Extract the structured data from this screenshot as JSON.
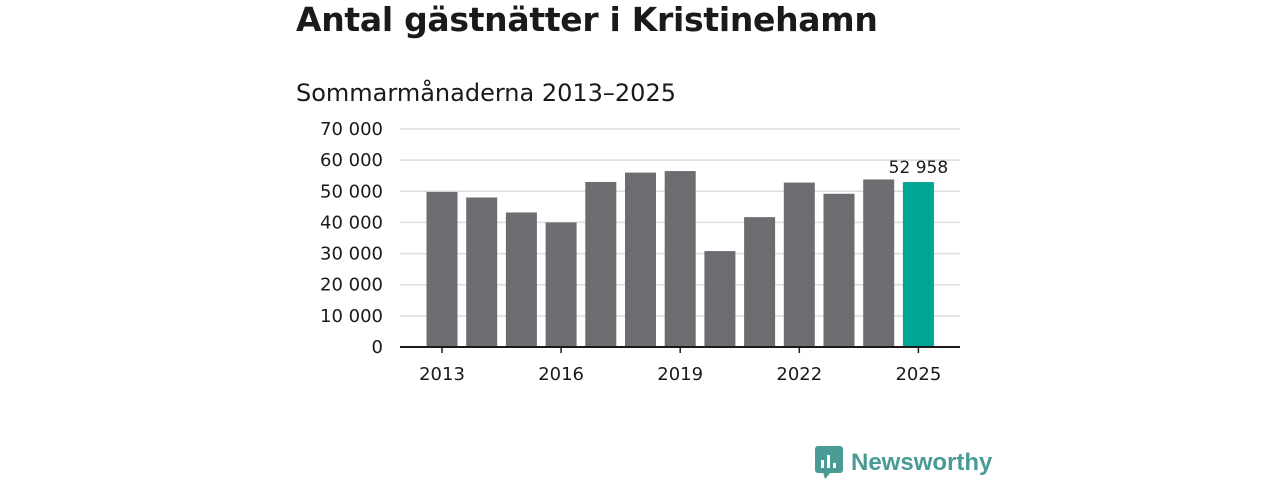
{
  "title": "Antal gästnätter i Kristinehamn",
  "subtitle": "Sommarmånaderna 2013–2025",
  "brand": {
    "name": "Newsworthy",
    "logo_icon": "bar-chart-speech-bubble-icon",
    "color": "#4a9b95"
  },
  "chart_data": {
    "type": "bar",
    "title": "Antal gästnätter i Kristinehamn",
    "subtitle": "Sommarmånaderna 2013–2025",
    "xlabel": "",
    "ylabel": "",
    "categories": [
      2013,
      2014,
      2015,
      2016,
      2017,
      2018,
      2019,
      2020,
      2021,
      2022,
      2023,
      2024,
      2025
    ],
    "x_tick_labels": [
      "2013",
      "2016",
      "2019",
      "2022",
      "2025"
    ],
    "y_tick_labels": [
      "0",
      "10 000",
      "20 000",
      "30 000",
      "40 000",
      "50 000",
      "60 000",
      "70 000"
    ],
    "series": [
      {
        "values": [
          49800,
          48000,
          43200,
          40000,
          53000,
          56000,
          56500,
          30800,
          41700,
          52800,
          49200,
          53800,
          52958
        ]
      }
    ],
    "ylim": [
      0,
      70000
    ],
    "grid": true,
    "bar_color": "#6d6c71",
    "highlight_color": "#00a595",
    "highlight_index": 12,
    "data_labels": [
      {
        "index": 12,
        "text": "52 958"
      }
    ]
  }
}
